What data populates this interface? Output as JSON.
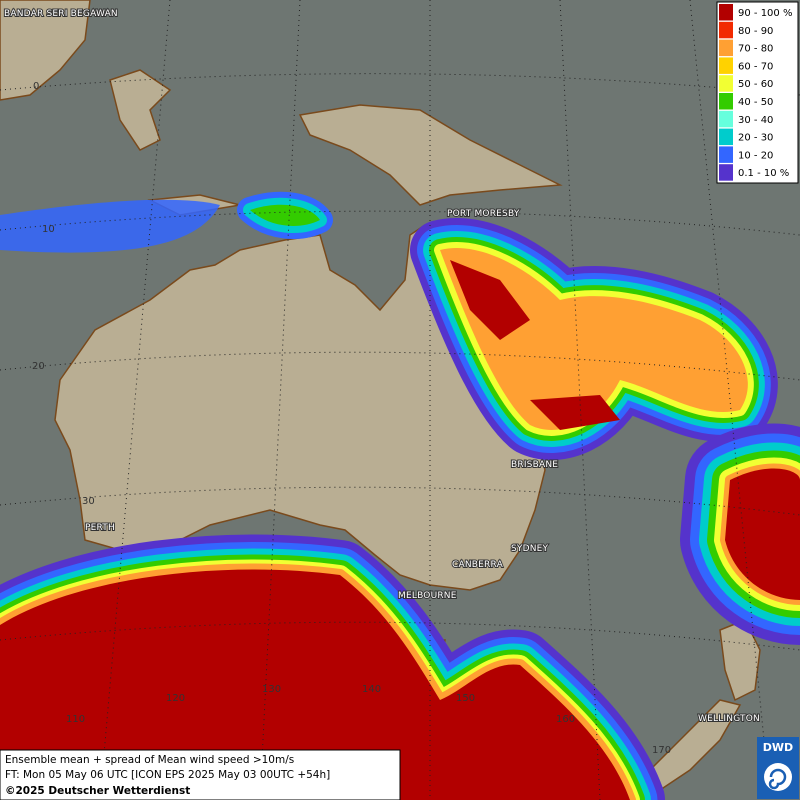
{
  "map": {
    "legend": [
      {
        "label": "90 - 100 %",
        "color": "#b20000"
      },
      {
        "label": "80 - 90",
        "color": "#f22a00"
      },
      {
        "label": "70 - 80",
        "color": "#ffa033"
      },
      {
        "label": "60 - 70",
        "color": "#ffd200"
      },
      {
        "label": "50 - 60",
        "color": "#f2ff33"
      },
      {
        "label": "40 - 50",
        "color": "#33cc00"
      },
      {
        "label": "30 - 40",
        "color": "#66ffdd"
      },
      {
        "label": "20 - 30",
        "color": "#00cccc"
      },
      {
        "label": "10 - 20",
        "color": "#3366ff"
      },
      {
        "label": "0.1 - 10 %",
        "color": "#5533cc"
      }
    ],
    "cities": [
      "BANDAR SERI BEGAWAN",
      "PORT MORESBY",
      "BRISBANE",
      "SYDNEY",
      "CANBERRA",
      "MELBOURNE",
      "PERTH",
      "WELLINGTON"
    ],
    "latitudes": [
      "0",
      "10",
      "20",
      "30"
    ],
    "longitudes": [
      "110",
      "120",
      "130",
      "140",
      "150",
      "160",
      "170"
    ],
    "info": {
      "line1": "Ensemble mean + spread of Mean wind speed >10m/s",
      "line2": "FT: Mon 05 May 06 UTC [ICON EPS 2025 May 03 00UTC +54h]",
      "line3": "©2025 Deutscher Wetterdienst"
    },
    "logo": "DWD"
  }
}
